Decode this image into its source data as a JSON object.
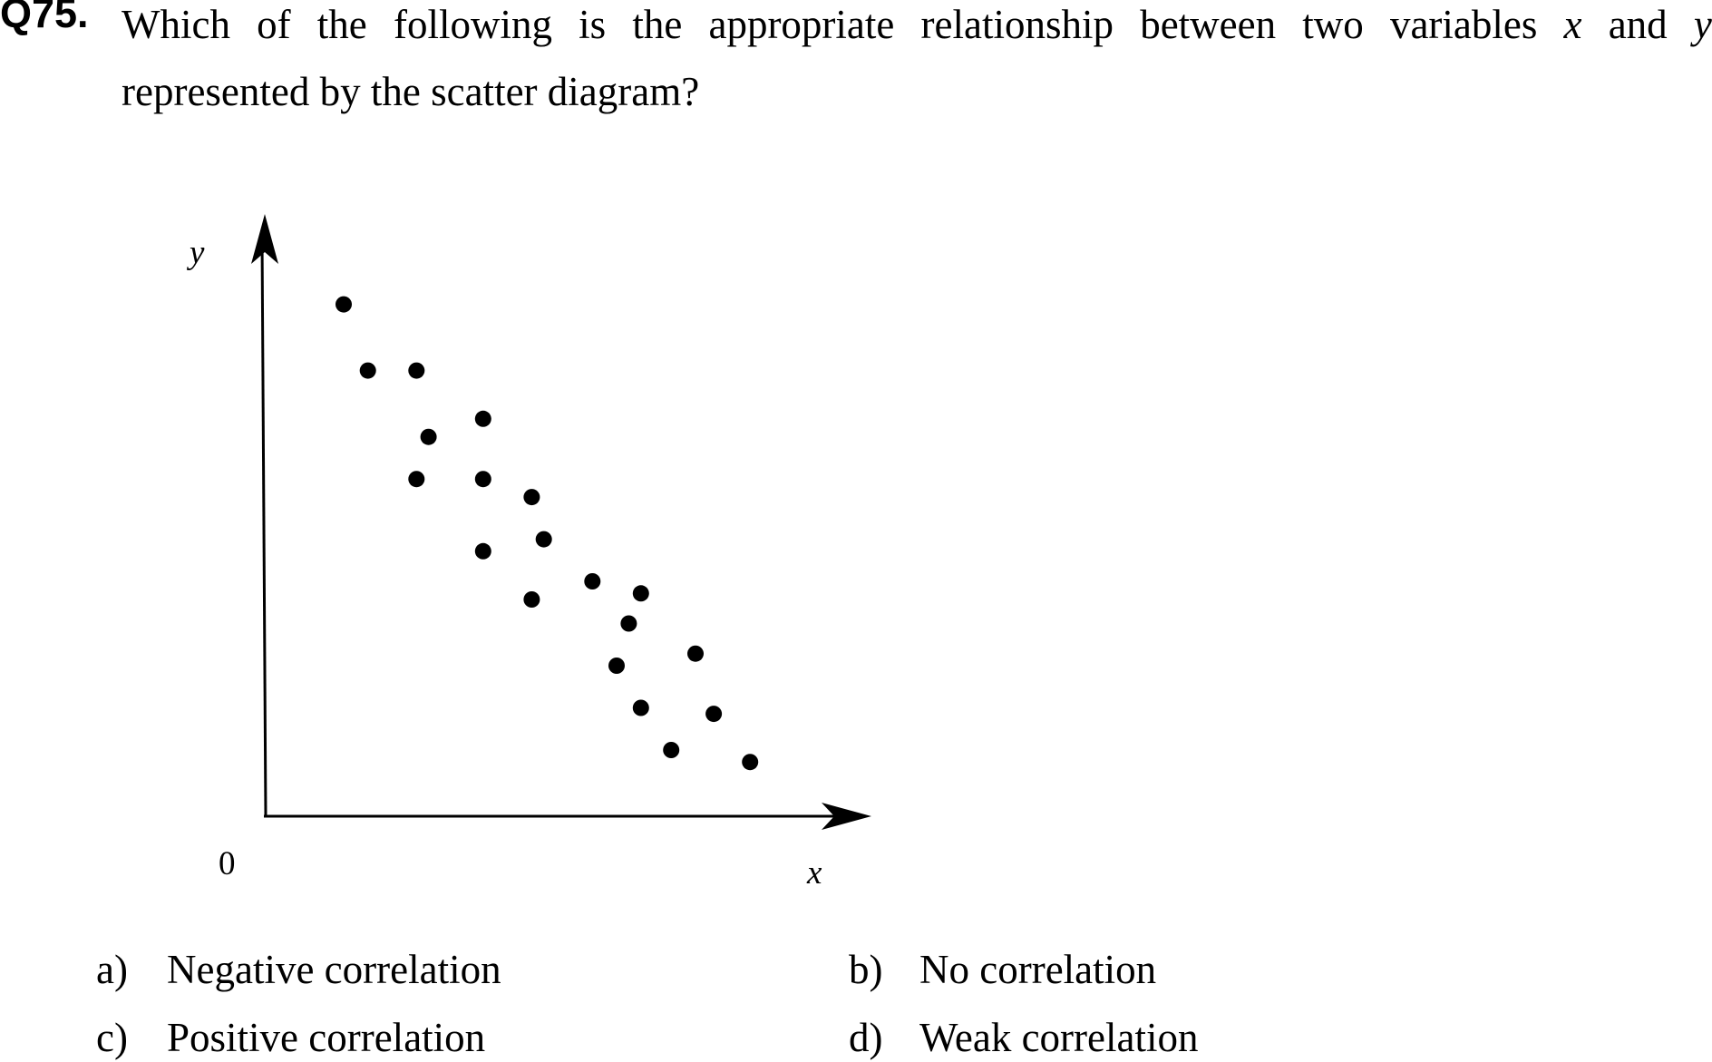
{
  "question": {
    "number": "Q75.",
    "line1_words": [
      "Which",
      "of",
      "the",
      "following",
      "is",
      "the",
      "appropriate",
      "relationship",
      "between",
      "two",
      "variables",
      "x",
      "and",
      "y"
    ],
    "line2": "represented by the scatter diagram?"
  },
  "chart_data": {
    "type": "scatter",
    "title": "",
    "xlabel": "x",
    "ylabel": "y",
    "origin_label": "0",
    "xlim": [
      0,
      10
    ],
    "ylim": [
      0,
      10
    ],
    "grid": false,
    "points": [
      [
        1.3,
        8.5
      ],
      [
        1.7,
        7.4
      ],
      [
        2.5,
        7.4
      ],
      [
        2.7,
        6.3
      ],
      [
        3.6,
        6.6
      ],
      [
        2.5,
        5.6
      ],
      [
        3.6,
        5.6
      ],
      [
        4.4,
        5.3
      ],
      [
        4.6,
        4.6
      ],
      [
        3.6,
        4.4
      ],
      [
        5.4,
        3.9
      ],
      [
        6.2,
        3.7
      ],
      [
        4.4,
        3.6
      ],
      [
        6.0,
        3.2
      ],
      [
        7.1,
        2.7
      ],
      [
        5.8,
        2.5
      ],
      [
        6.2,
        1.8
      ],
      [
        7.4,
        1.7
      ],
      [
        6.7,
        1.1
      ],
      [
        8.0,
        0.9
      ]
    ]
  },
  "options": [
    {
      "letter": "a)",
      "text": "Negative correlation"
    },
    {
      "letter": "b)",
      "text": "No correlation"
    },
    {
      "letter": "c)",
      "text": "Positive correlation"
    },
    {
      "letter": "d)",
      "text": "Weak correlation"
    }
  ]
}
